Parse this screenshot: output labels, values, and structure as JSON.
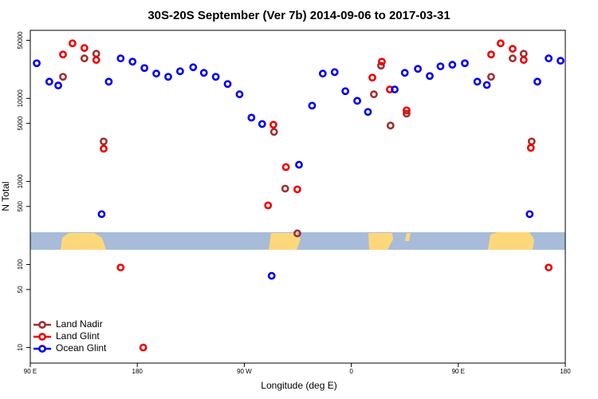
{
  "chart_data": {
    "type": "scatter",
    "title": "30S-20S September (Ver 7b)   2014-09-06 to 2017-03-31",
    "x_label": "Longitude (deg E)",
    "y_label": "N Total",
    "xlim": [
      90,
      540
    ],
    "xticks": [
      {
        "value": 90,
        "label": "90 E"
      },
      180,
      {
        "value": 270,
        "label": "90 W"
      },
      {
        "value": 360,
        "label": "0"
      },
      {
        "value": 450,
        "label": "90 E"
      },
      {
        "value": 540,
        "label": "180"
      }
    ],
    "ylim": [
      6.5,
      66000
    ],
    "y_scale": "log",
    "yticks": [
      10,
      50,
      100,
      500,
      1000,
      5000,
      10000,
      50000
    ],
    "legend_position": "bottom-left",
    "series": [
      {
        "name": "Land Nadir",
        "color": "#a03030",
        "x": [
          117.5,
          135.5,
          145.5,
          151.7,
          295,
          304.4,
          314.6,
          379,
          385,
          393,
          406.5,
          477.6,
          495.7,
          505,
          511.7
        ],
        "values": [
          18200,
          30300,
          34500,
          3030,
          3950,
          820,
          237,
          11200,
          24800,
          4710,
          6560,
          18200,
          30300,
          34500,
          3030
        ]
      },
      {
        "name": "Land Glint",
        "color": "#ee0000",
        "x": [
          117.5,
          125.5,
          135.5,
          145.5,
          151.7,
          166,
          185,
          290,
          294.5,
          305,
          314.6,
          377.7,
          385.7,
          392.4,
          406.5,
          477.6,
          485.6,
          495.7,
          505,
          511,
          526
        ],
        "values": [
          33800,
          46000,
          40400,
          29000,
          2480,
          92,
          10,
          515,
          4820,
          1490,
          802,
          17800,
          27700,
          12800,
          7180,
          33800,
          46000,
          39500,
          29000,
          2540,
          92
        ]
      },
      {
        "name": "Ocean Glint",
        "color": "#0000ee",
        "x": [
          95.4,
          106,
          113.5,
          150,
          156,
          166,
          176,
          186,
          196,
          206,
          216,
          227,
          236,
          246,
          256,
          266,
          276,
          285,
          293,
          316,
          327,
          336,
          346,
          355,
          365,
          374,
          396.5,
          405,
          416,
          426,
          435,
          445,
          455.5,
          466,
          474,
          510,
          516.5,
          526,
          536
        ],
        "values": [
          26500,
          15900,
          14300,
          404,
          15900,
          30300,
          27700,
          23200,
          19900,
          18200,
          21200,
          23700,
          20300,
          18200,
          14900,
          11200,
          5870,
          4920,
          73,
          1590,
          8180,
          19900,
          20700,
          12200,
          9350,
          6870,
          12800,
          20300,
          22700,
          18600,
          24300,
          25400,
          26500,
          15900,
          14500,
          404,
          15900,
          30300,
          28400
        ]
      }
    ]
  }
}
